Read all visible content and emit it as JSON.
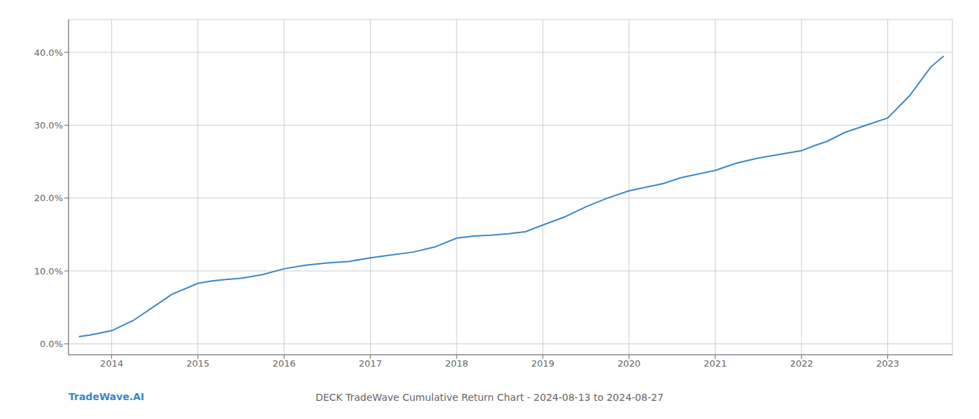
{
  "chart_data": {
    "type": "line",
    "title": "DECK TradeWave Cumulative Return Chart - 2024-08-13 to 2024-08-27",
    "annotations": [
      "TradeWave.AI"
    ],
    "color": "#3a86c8",
    "grid": true,
    "x": [
      2013.62,
      2013.75,
      2014.0,
      2014.25,
      2014.5,
      2014.7,
      2014.9,
      2015.0,
      2015.15,
      2015.3,
      2015.5,
      2015.75,
      2016.0,
      2016.25,
      2016.5,
      2016.75,
      2017.0,
      2017.25,
      2017.5,
      2017.75,
      2018.0,
      2018.2,
      2018.4,
      2018.6,
      2018.8,
      2019.0,
      2019.25,
      2019.5,
      2019.75,
      2020.0,
      2020.2,
      2020.4,
      2020.6,
      2020.8,
      2021.0,
      2021.25,
      2021.5,
      2021.75,
      2022.0,
      2022.15,
      2022.3,
      2022.5,
      2022.75,
      2023.0,
      2023.25,
      2023.5,
      2023.65
    ],
    "values": [
      0.01,
      0.012,
      0.018,
      0.032,
      0.052,
      0.068,
      0.078,
      0.083,
      0.086,
      0.088,
      0.09,
      0.095,
      0.103,
      0.108,
      0.111,
      0.113,
      0.118,
      0.122,
      0.126,
      0.133,
      0.145,
      0.148,
      0.149,
      0.151,
      0.154,
      0.163,
      0.174,
      0.188,
      0.2,
      0.21,
      0.215,
      0.22,
      0.228,
      0.233,
      0.238,
      0.248,
      0.255,
      0.26,
      0.265,
      0.272,
      0.278,
      0.29,
      0.3,
      0.31,
      0.34,
      0.38,
      0.395
    ],
    "xlim": [
      2013.5,
      2023.75
    ],
    "ylim": [
      -0.015,
      0.445
    ],
    "xticks": [
      2014,
      2015,
      2016,
      2017,
      2018,
      2019,
      2020,
      2021,
      2022,
      2023
    ],
    "yticks": [
      {
        "value": 0.0,
        "label": "0.0%"
      },
      {
        "value": 0.1,
        "label": "10.0%"
      },
      {
        "value": 0.2,
        "label": "20.0%"
      },
      {
        "value": 0.3,
        "label": "30.0%"
      },
      {
        "value": 0.4,
        "label": "40.0%"
      }
    ]
  }
}
